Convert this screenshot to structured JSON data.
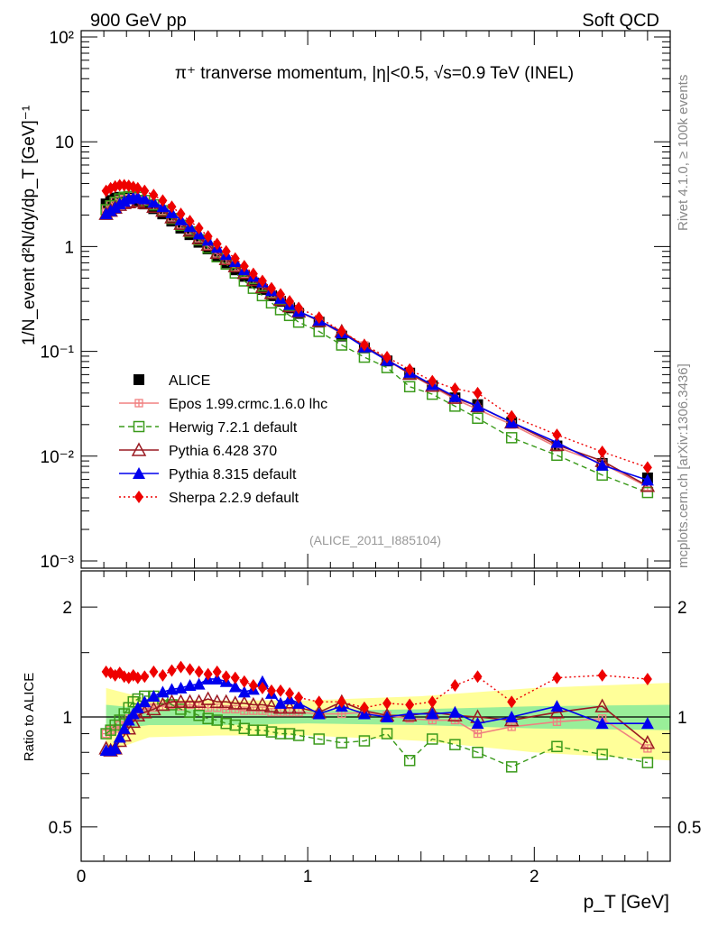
{
  "header": {
    "left": "900 GeV pp",
    "right": "Soft QCD"
  },
  "side_labels": {
    "rivet": "Rivet 4.1.0, ≥ 100k events",
    "mcplots": "mcplots.cern.ch [arXiv:1306.3436]"
  },
  "main_title": "π⁺ tranverse momentum, |η|<0.5, √s=0.9 TeV (INEL)",
  "watermark": "(ALICE_2011_I885104)",
  "axes": {
    "xlabel": "p_T [GeV]",
    "ylabel_top": "1/N_event d²N/dy/dp_T [GeV]⁻¹",
    "ylabel_bottom": "Ratio to ALICE",
    "x_ticks": [
      "0",
      "1",
      "2"
    ],
    "y_ticks_top": [
      "10⁻³",
      "10⁻²",
      "10⁻¹",
      "1",
      "10",
      "10²"
    ],
    "y_ticks_bottom": [
      "0.5",
      "1",
      "2"
    ]
  },
  "legend": [
    {
      "key": "alice",
      "label": "ALICE",
      "color": "#000000"
    },
    {
      "key": "epos",
      "label": "Epos 1.99.crmc.1.6.0 lhc",
      "color": "#f08080"
    },
    {
      "key": "herwig",
      "label": "Herwig 7.2.1 default",
      "color": "#3a9a1a"
    },
    {
      "key": "py6",
      "label": "Pythia 6.428 370",
      "color": "#9a1a22"
    },
    {
      "key": "py8",
      "label": "Pythia 8.315 default",
      "color": "#0000ee"
    },
    {
      "key": "sherpa",
      "label": "Sherpa 2.2.9 default",
      "color": "#ee0000"
    }
  ],
  "chart_data": [
    {
      "type": "scatter",
      "scale": "log-y",
      "title": "π⁺ tranverse momentum, |η|<0.5, √s=0.9 TeV (INEL)",
      "xlabel": "p_T [GeV]",
      "ylabel": "1/N_event d²N/dy/dp_T [GeV]⁻¹",
      "xlim": [
        0,
        2.6
      ],
      "ylim": [
        0.001,
        100
      ],
      "x": [
        0.11,
        0.13,
        0.15,
        0.17,
        0.19,
        0.21,
        0.23,
        0.25,
        0.28,
        0.32,
        0.36,
        0.4,
        0.44,
        0.48,
        0.52,
        0.56,
        0.6,
        0.64,
        0.68,
        0.72,
        0.76,
        0.8,
        0.84,
        0.88,
        0.92,
        0.96,
        1.05,
        1.15,
        1.25,
        1.35,
        1.45,
        1.55,
        1.65,
        1.75,
        1.9,
        2.1,
        2.3,
        2.5
      ],
      "series": [
        {
          "name": "ALICE",
          "key": "alice",
          "values": [
            2.55,
            2.75,
            2.9,
            2.95,
            2.95,
            2.9,
            2.85,
            2.75,
            2.55,
            2.3,
            2.05,
            1.75,
            1.5,
            1.3,
            1.1,
            0.95,
            0.8,
            0.7,
            0.6,
            0.52,
            0.45,
            0.39,
            0.34,
            0.3,
            0.26,
            0.23,
            0.19,
            0.14,
            0.108,
            0.081,
            0.062,
            0.047,
            0.036,
            0.031,
            0.021,
            0.0125,
            0.0085,
            0.0062
          ]
        },
        {
          "name": "Epos 1.99.crmc.1.6.0 lhc",
          "key": "epos",
          "values": [
            2.3,
            2.5,
            2.7,
            2.8,
            2.85,
            2.9,
            2.9,
            2.85,
            2.7,
            2.45,
            2.2,
            1.9,
            1.62,
            1.42,
            1.2,
            1.02,
            0.86,
            0.75,
            0.64,
            0.55,
            0.48,
            0.41,
            0.355,
            0.31,
            0.27,
            0.24,
            0.195,
            0.148,
            0.114,
            0.082,
            0.061,
            0.046,
            0.035,
            0.028,
            0.02,
            0.0122,
            0.0085,
            0.0051
          ]
        },
        {
          "name": "Herwig 7.2.1 default",
          "key": "herwig",
          "values": [
            2.25,
            2.45,
            2.65,
            2.85,
            2.95,
            3.0,
            3.0,
            2.95,
            2.75,
            2.5,
            2.2,
            1.85,
            1.6,
            1.38,
            1.16,
            0.97,
            0.8,
            0.68,
            0.56,
            0.47,
            0.4,
            0.34,
            0.29,
            0.25,
            0.22,
            0.19,
            0.155,
            0.115,
            0.088,
            0.07,
            0.046,
            0.039,
            0.03,
            0.023,
            0.015,
            0.0102,
            0.0066,
            0.0045
          ]
        },
        {
          "name": "Pythia 6.428 370",
          "key": "py6",
          "values": [
            2.05,
            2.2,
            2.35,
            2.5,
            2.6,
            2.65,
            2.7,
            2.7,
            2.6,
            2.4,
            2.2,
            1.9,
            1.65,
            1.42,
            1.2,
            1.04,
            0.87,
            0.76,
            0.65,
            0.56,
            0.48,
            0.41,
            0.36,
            0.31,
            0.27,
            0.24,
            0.195,
            0.155,
            0.112,
            0.084,
            0.061,
            0.047,
            0.036,
            0.03,
            0.021,
            0.0128,
            0.009,
            0.0052
          ]
        },
        {
          "name": "Pythia 8.315 default",
          "key": "py8",
          "values": [
            2.05,
            2.2,
            2.35,
            2.55,
            2.7,
            2.85,
            2.9,
            2.95,
            2.85,
            2.65,
            2.4,
            2.1,
            1.8,
            1.55,
            1.32,
            1.15,
            0.98,
            0.84,
            0.72,
            0.6,
            0.52,
            0.46,
            0.38,
            0.32,
            0.28,
            0.24,
            0.198,
            0.15,
            0.11,
            0.082,
            0.063,
            0.048,
            0.037,
            0.03,
            0.021,
            0.0135,
            0.0082,
            0.0059
          ]
        },
        {
          "name": "Sherpa 2.2.9 default",
          "key": "sherpa",
          "values": [
            3.4,
            3.6,
            3.75,
            3.85,
            3.85,
            3.8,
            3.7,
            3.6,
            3.4,
            3.1,
            2.75,
            2.4,
            2.05,
            1.75,
            1.5,
            1.25,
            1.06,
            0.9,
            0.77,
            0.65,
            0.55,
            0.47,
            0.4,
            0.35,
            0.3,
            0.26,
            0.21,
            0.155,
            0.115,
            0.088,
            0.067,
            0.052,
            0.044,
            0.04,
            0.024,
            0.016,
            0.011,
            0.0078
          ]
        }
      ]
    },
    {
      "type": "scatter",
      "scale": "log-y",
      "title": "Ratio to ALICE",
      "xlabel": "p_T [GeV]",
      "ylabel": "Ratio to ALICE",
      "xlim": [
        0,
        2.6
      ],
      "ylim": [
        0.4,
        2.5
      ],
      "band_inner": [
        [
          0.11,
          0.08
        ],
        [
          0.3,
          0.05
        ],
        [
          0.6,
          0.05
        ],
        [
          1.0,
          0.04
        ],
        [
          1.5,
          0.05
        ],
        [
          2.0,
          0.07
        ],
        [
          2.6,
          0.08
        ]
      ],
      "band_outer": [
        [
          0.11,
          0.2
        ],
        [
          0.3,
          0.12
        ],
        [
          0.6,
          0.11
        ],
        [
          1.0,
          0.11
        ],
        [
          1.5,
          0.14
        ],
        [
          2.0,
          0.2
        ],
        [
          2.6,
          0.24
        ]
      ],
      "x": [
        0.11,
        0.13,
        0.15,
        0.17,
        0.19,
        0.21,
        0.23,
        0.25,
        0.28,
        0.32,
        0.36,
        0.4,
        0.44,
        0.48,
        0.52,
        0.56,
        0.6,
        0.64,
        0.68,
        0.72,
        0.76,
        0.8,
        0.84,
        0.88,
        0.92,
        0.96,
        1.05,
        1.15,
        1.25,
        1.35,
        1.45,
        1.55,
        1.65,
        1.75,
        1.9,
        2.1,
        2.3,
        2.5
      ],
      "series": [
        {
          "name": "Epos 1.99.crmc.1.6.0 lhc",
          "key": "epos",
          "values": [
            0.9,
            0.92,
            0.93,
            0.95,
            0.97,
            0.99,
            1.01,
            1.03,
            1.05,
            1.06,
            1.07,
            1.08,
            1.07,
            1.08,
            1.07,
            1.06,
            1.06,
            1.05,
            1.05,
            1.04,
            1.04,
            1.04,
            1.03,
            1.03,
            1.03,
            1.03,
            1.02,
            1.02,
            1.03,
            1.01,
            0.99,
            0.98,
            0.98,
            0.9,
            0.94,
            0.97,
            0.99,
            0.82
          ]
        },
        {
          "name": "Herwig 7.2.1 default",
          "key": "herwig",
          "values": [
            0.9,
            0.92,
            0.95,
            0.98,
            1.02,
            1.06,
            1.1,
            1.12,
            1.14,
            1.14,
            1.12,
            1.08,
            1.05,
            1.03,
            1.01,
            0.99,
            0.98,
            0.96,
            0.95,
            0.93,
            0.92,
            0.92,
            0.91,
            0.9,
            0.9,
            0.89,
            0.87,
            0.85,
            0.86,
            0.9,
            0.76,
            0.87,
            0.84,
            0.8,
            0.73,
            0.83,
            0.79,
            0.75
          ]
        },
        {
          "name": "Pythia 6.428 370",
          "key": "py6",
          "values": [
            0.82,
            0.81,
            0.82,
            0.86,
            0.89,
            0.93,
            0.97,
            1.01,
            1.03,
            1.05,
            1.08,
            1.1,
            1.1,
            1.1,
            1.1,
            1.12,
            1.1,
            1.1,
            1.09,
            1.09,
            1.08,
            1.08,
            1.07,
            1.06,
            1.06,
            1.06,
            1.03,
            1.1,
            1.04,
            1.01,
            1.01,
            1.03,
            1.01,
            1.0,
            0.98,
            1.03,
            1.07,
            0.85
          ]
        },
        {
          "name": "Pythia 8.315 default",
          "key": "py8",
          "values": [
            0.81,
            0.81,
            0.82,
            0.88,
            0.93,
            0.98,
            1.02,
            1.06,
            1.1,
            1.14,
            1.17,
            1.19,
            1.2,
            1.22,
            1.23,
            1.27,
            1.27,
            1.25,
            1.21,
            1.17,
            1.19,
            1.25,
            1.16,
            1.09,
            1.12,
            1.09,
            1.02,
            1.07,
            1.02,
            1.0,
            1.02,
            1.02,
            1.03,
            0.96,
            1.0,
            1.07,
            0.96,
            0.96
          ]
        },
        {
          "name": "Sherpa 2.2.9 default",
          "key": "sherpa",
          "values": [
            1.33,
            1.32,
            1.3,
            1.32,
            1.29,
            1.28,
            1.3,
            1.28,
            1.29,
            1.33,
            1.3,
            1.34,
            1.37,
            1.35,
            1.33,
            1.31,
            1.33,
            1.29,
            1.28,
            1.25,
            1.22,
            1.2,
            1.18,
            1.18,
            1.16,
            1.13,
            1.1,
            1.1,
            1.06,
            1.09,
            1.08,
            1.1,
            1.22,
            1.29,
            1.1,
            1.28,
            1.3,
            1.27
          ]
        }
      ]
    }
  ]
}
